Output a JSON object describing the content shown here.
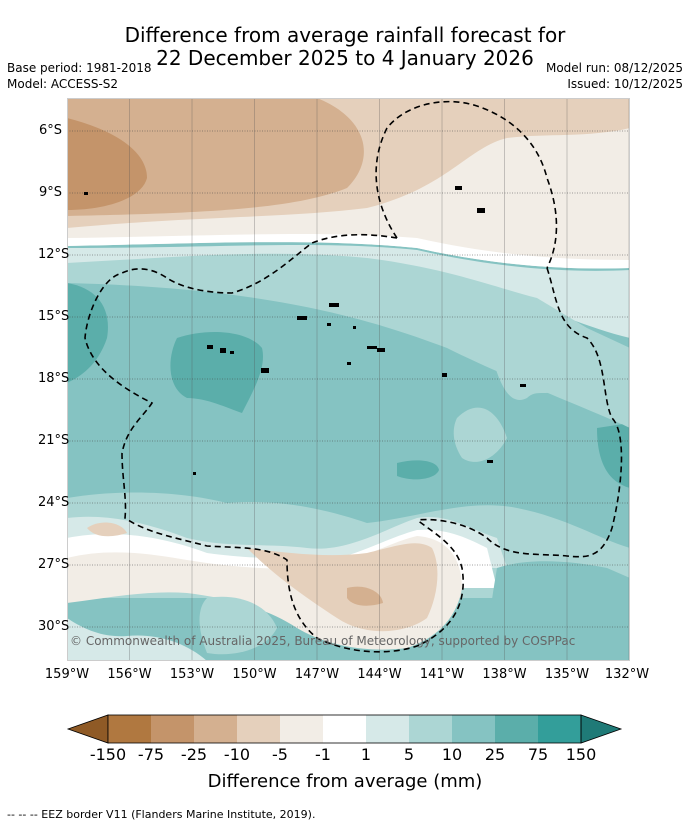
{
  "title_line1": "Difference from average rainfall forecast for",
  "title_line2": "22 December 2025 to 4 January 2026",
  "base_period": "Base period: 1981-2018",
  "model": "Model: ACCESS-S2",
  "model_run": "Model run: 08/12/2025",
  "issued": "Issued: 10/12/2025",
  "copyright": "© Commonwealth of Australia 2025, Bureau of Meteorology, supported by COSPPac",
  "lat_labels": [
    "6°S",
    "9°S",
    "12°S",
    "15°S",
    "18°S",
    "21°S",
    "24°S",
    "27°S",
    "30°S"
  ],
  "lon_labels": [
    "159°W",
    "156°W",
    "153°W",
    "150°W",
    "147°W",
    "144°W",
    "141°W",
    "138°W",
    "135°W",
    "132°W"
  ],
  "colorbar": {
    "title": "Difference from average (mm)",
    "labels": [
      "-150",
      "-75",
      "-25",
      "-10",
      "-5",
      "-1",
      "1",
      "5",
      "10",
      "25",
      "75",
      "150"
    ],
    "colors": [
      "#8f5a26",
      "#b07840",
      "#c4946a",
      "#d4b090",
      "#e5d0bc",
      "#f2ede6",
      "#ffffff",
      "#d6e9e8",
      "#acd6d4",
      "#85c3c2",
      "#5baeaa",
      "#339e9a",
      "#1f7a77"
    ]
  },
  "eez_legend": "--  --  -- EEZ border V11 (Flanders Marine Institute, 2019)."
}
